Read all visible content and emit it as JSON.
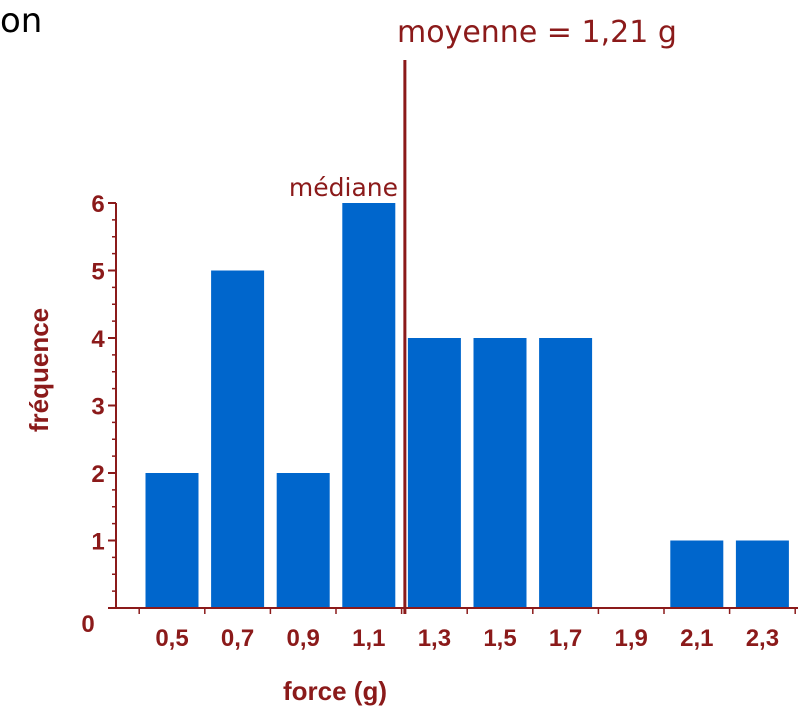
{
  "partial_title": "on",
  "colors": {
    "bar": "#0066cc",
    "axis": "#8b1a1a",
    "text": "#8b1a1a"
  },
  "chart_data": {
    "type": "bar",
    "categories": [
      "0,5",
      "0,7",
      "0,9",
      "1,1",
      "1,3",
      "1,5",
      "1,7",
      "1,9",
      "2,1",
      "2,3"
    ],
    "values": [
      2,
      5,
      2,
      6,
      4,
      4,
      4,
      0,
      1,
      1
    ],
    "xlabel": "force (g)",
    "ylabel": "fréquence",
    "yticks": [
      "0",
      "1",
      "2",
      "3",
      "4",
      "5",
      "6"
    ],
    "ylim": [
      0,
      6
    ],
    "mean": {
      "value": 1.21,
      "label": "moyenne = 1,21 g"
    },
    "median": {
      "value": 1.2,
      "label": "médiane"
    },
    "grid": false
  }
}
